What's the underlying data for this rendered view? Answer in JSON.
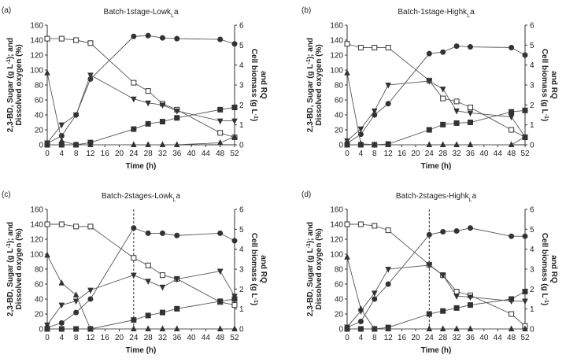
{
  "chart_data": [
    {
      "type": "line",
      "panel": "(a)",
      "title": [
        "Batch-1stage-Lowk",
        "L",
        "a"
      ],
      "xlabel": "Time (h)",
      "ylabel": [
        [
          "2,3-BD, Sugar (g L",
          "-1",
          "); and"
        ],
        [
          "Dissolved oxygen (%)"
        ]
      ],
      "y2label": [
        [
          "Cell biomass (g L",
          "-1",
          ")"
        ],
        [
          "and RQ"
        ]
      ],
      "x": [
        0,
        4,
        8,
        12,
        24,
        28,
        32,
        36,
        48,
        52
      ],
      "xlim": [
        0,
        52
      ],
      "xticks": [
        0,
        4,
        8,
        12,
        16,
        20,
        24,
        28,
        32,
        36,
        40,
        44,
        48,
        52
      ],
      "ylim": [
        0,
        160
      ],
      "yticks": [
        0,
        20,
        40,
        60,
        80,
        100,
        120,
        140,
        160
      ],
      "y2lim": [
        0,
        6
      ],
      "y2ticks": [
        0,
        1,
        2,
        3,
        4,
        5,
        6
      ],
      "series": [
        {
          "marker": "square-open",
          "color": "#333",
          "values": [
            142,
            142,
            140,
            136,
            83,
            72,
            55,
            47,
            16,
            10
          ]
        },
        {
          "marker": "circle",
          "color": "#333",
          "values": [
            2,
            12,
            40,
            88,
            145,
            146,
            143,
            142,
            141,
            135
          ]
        },
        {
          "marker": "square",
          "color": "#333",
          "values": [
            0,
            0,
            0,
            3,
            21,
            28,
            31,
            36,
            47,
            50
          ]
        },
        {
          "marker": "triangle-down",
          "color": "#333",
          "axis": "y2",
          "values": [
            0.1,
            1.0,
            1.5,
            3.5,
            2.3,
            2.1,
            2.0,
            1.7,
            1.2,
            1.2
          ]
        },
        {
          "marker": "triangle",
          "color": "#333",
          "axis": "y2",
          "values": [
            3.6,
            0.2,
            0,
            0,
            0,
            0,
            0,
            0,
            0.1,
            0.4
          ]
        }
      ]
    },
    {
      "type": "line",
      "panel": "(b)",
      "title": [
        "Batch-1stage-Highk",
        "L",
        "a"
      ],
      "xlabel": "Time (h)",
      "ylabel": [
        [
          "2,3-BD, Sugar (g L",
          "-1",
          "); and"
        ],
        [
          "Dissolved oxygen (%)"
        ]
      ],
      "y2label": [
        [
          "Cell biomass (g L",
          "-1",
          ")"
        ],
        [
          "and RQ"
        ]
      ],
      "x": [
        0,
        4,
        8,
        12,
        24,
        28,
        32,
        36,
        48,
        52
      ],
      "xlim": [
        0,
        52
      ],
      "xticks": [
        0,
        4,
        8,
        12,
        16,
        20,
        24,
        28,
        32,
        36,
        40,
        44,
        48,
        52
      ],
      "ylim": [
        0,
        160
      ],
      "yticks": [
        0,
        20,
        40,
        60,
        80,
        100,
        120,
        140,
        160
      ],
      "y2lim": [
        0,
        6
      ],
      "y2ticks": [
        0,
        1,
        2,
        3,
        4,
        5,
        6
      ],
      "series": [
        {
          "marker": "square-open",
          "color": "#333",
          "values": [
            135,
            130,
            130,
            130,
            86,
            62,
            58,
            50,
            20,
            10
          ]
        },
        {
          "marker": "circle",
          "color": "#333",
          "values": [
            2,
            14,
            40,
            55,
            122,
            124,
            132,
            131,
            130,
            120
          ]
        },
        {
          "marker": "square",
          "color": "#333",
          "values": [
            0,
            0,
            0,
            1,
            20,
            27,
            29,
            30,
            44,
            46
          ]
        },
        {
          "marker": "triangle-down",
          "color": "#333",
          "axis": "y2",
          "values": [
            0.2,
            0.8,
            1.7,
            3.0,
            3.2,
            2.8,
            1.7,
            1.6,
            1.4,
            0.4
          ]
        },
        {
          "marker": "triangle",
          "color": "#333",
          "axis": "y2",
          "values": [
            3.6,
            0.05,
            0,
            0,
            0,
            0,
            0,
            0,
            0,
            0.4
          ]
        }
      ]
    },
    {
      "type": "line",
      "panel": "(c)",
      "title": [
        "Batch-2stages-Lowk",
        "L",
        "a"
      ],
      "xlabel": "Time (h)",
      "ylabel": [
        [
          "2,3-BD, Sugar (g L",
          "-1",
          "); and"
        ],
        [
          "Dissolved oxygen (%)"
        ]
      ],
      "y2label": [
        [
          "Cell biomass (g L",
          "-1",
          ")"
        ],
        [
          "and RQ"
        ]
      ],
      "x": [
        0,
        4,
        8,
        12,
        24,
        28,
        32,
        36,
        48,
        52
      ],
      "vline": 24,
      "xlim": [
        0,
        52
      ],
      "xticks": [
        0,
        4,
        8,
        12,
        16,
        20,
        24,
        28,
        32,
        36,
        40,
        44,
        48,
        52
      ],
      "ylim": [
        0,
        160
      ],
      "yticks": [
        0,
        20,
        40,
        60,
        80,
        100,
        120,
        140,
        160
      ],
      "y2lim": [
        0,
        6
      ],
      "y2ticks": [
        0,
        1,
        2,
        3,
        4,
        5,
        6
      ],
      "series": [
        {
          "marker": "square-open",
          "color": "#333",
          "values": [
            140,
            140,
            137,
            137,
            95,
            85,
            72,
            67,
            36,
            32
          ]
        },
        {
          "marker": "circle",
          "color": "#333",
          "values": [
            2,
            8,
            22,
            40,
            135,
            128,
            128,
            125,
            128,
            118
          ]
        },
        {
          "marker": "square",
          "color": "#333",
          "values": [
            0,
            0,
            0,
            0,
            12,
            18,
            22,
            27,
            37,
            40
          ]
        },
        {
          "marker": "triangle-down",
          "color": "#333",
          "axis": "y2",
          "values": [
            0.2,
            1.2,
            1.4,
            1.95,
            2.7,
            2.4,
            2.1,
            2.5,
            2.9,
            1.65
          ]
        },
        {
          "marker": "triangle",
          "color": "#333",
          "axis": "y2",
          "values": [
            3.7,
            2.3,
            1.7,
            0,
            0,
            0,
            0,
            0,
            0,
            0
          ]
        }
      ]
    },
    {
      "type": "line",
      "panel": "(d)",
      "title": [
        "Batch-2stages-Highk",
        "L",
        "a"
      ],
      "xlabel": "Time (h)",
      "ylabel": [
        [
          "2,3-BD, Sugar (g L",
          "-1",
          "); and"
        ],
        [
          "Dissolved oxygen (%)"
        ]
      ],
      "y2label": [
        [
          "Cell biomass (g L",
          "-1",
          ")"
        ],
        [
          "and RQ"
        ]
      ],
      "x": [
        0,
        4,
        8,
        12,
        24,
        28,
        32,
        36,
        48,
        52
      ],
      "vline": 24,
      "xlim": [
        0,
        52
      ],
      "xticks": [
        0,
        4,
        8,
        12,
        16,
        20,
        24,
        28,
        32,
        36,
        40,
        44,
        48,
        52
      ],
      "ylim": [
        0,
        160
      ],
      "yticks": [
        0,
        20,
        40,
        60,
        80,
        100,
        120,
        140,
        160
      ],
      "y2lim": [
        0,
        6
      ],
      "y2ticks": [
        0,
        1,
        2,
        3,
        4,
        5,
        6
      ],
      "series": [
        {
          "marker": "square-open",
          "color": "#333",
          "values": [
            140,
            140,
            138,
            132,
            86,
            72,
            50,
            45,
            20,
            4
          ]
        },
        {
          "marker": "circle",
          "color": "#333",
          "values": [
            2,
            10,
            40,
            60,
            126,
            130,
            131,
            135,
            124,
            124
          ]
        },
        {
          "marker": "square",
          "color": "#333",
          "values": [
            0,
            0,
            0,
            2,
            20,
            24,
            28,
            32,
            40,
            50
          ]
        },
        {
          "marker": "triangle-down",
          "color": "#333",
          "axis": "y2",
          "values": [
            0.1,
            0.9,
            1.8,
            3.0,
            3.2,
            2.7,
            1.65,
            1.6,
            1.4,
            1.4
          ]
        },
        {
          "marker": "triangle",
          "color": "#333",
          "axis": "y2",
          "values": [
            3.6,
            1.0,
            0,
            0,
            0,
            0,
            0,
            0,
            0,
            0
          ]
        }
      ]
    }
  ]
}
